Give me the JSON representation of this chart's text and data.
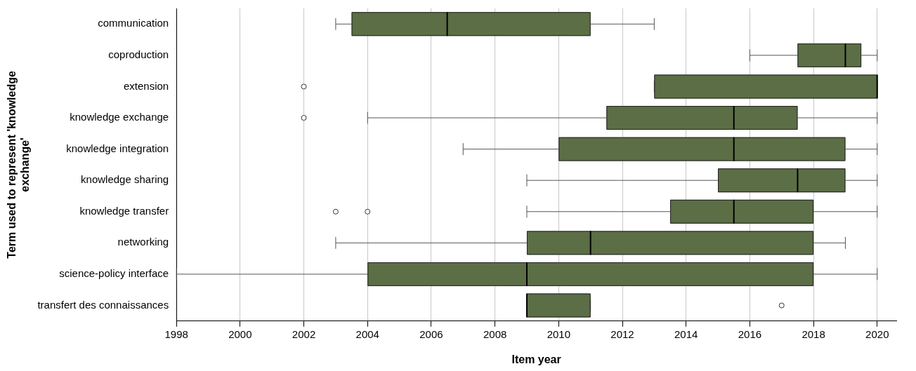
{
  "chart_data": {
    "type": "box",
    "orientation": "horizontal",
    "xlabel": "Item year",
    "ylabel": "Term used to represent 'knowledge exchange'",
    "categories": [
      "communication",
      "coproduction",
      "extension",
      "knowledge exchange",
      "knowledge integration",
      "knowledge sharing",
      "knowledge transfer",
      "networking",
      "science-policy interface",
      "transfert des connaissances"
    ],
    "color": "#5b6e45",
    "boxes": [
      {
        "low": 2003,
        "q1": 2003.5,
        "median": 2006.5,
        "q3": 2011,
        "high": 2013
      },
      {
        "low": 2016,
        "q1": 2017.5,
        "median": 2019,
        "q3": 2019.5,
        "high": 2020
      },
      {
        "low": 2013,
        "q1": 2013,
        "median": 2020,
        "q3": 2020,
        "high": 2020,
        "outliers": [
          2002
        ]
      },
      {
        "low": 2004,
        "q1": 2011.5,
        "median": 2015.5,
        "q3": 2017.5,
        "high": 2020,
        "outliers": [
          2002
        ]
      },
      {
        "low": 2007,
        "q1": 2010,
        "median": 2015.5,
        "q3": 2019,
        "high": 2020
      },
      {
        "low": 2009,
        "q1": 2015,
        "median": 2017.5,
        "q3": 2019,
        "high": 2020
      },
      {
        "low": 2009,
        "q1": 2013.5,
        "median": 2015.5,
        "q3": 2018,
        "high": 2020,
        "outliers": [
          2003,
          2004
        ]
      },
      {
        "low": 2003,
        "q1": 2009,
        "median": 2011,
        "q3": 2018,
        "high": 2019
      },
      {
        "low": 1998,
        "q1": 2004,
        "median": 2009,
        "q3": 2018,
        "high": 2020
      },
      {
        "low": 2009,
        "q1": 2009,
        "median": 2009,
        "q3": 2011,
        "high": 2011,
        "outliers": [
          2017
        ]
      }
    ],
    "xlim": [
      1998,
      2020.6
    ],
    "xticks": [
      1998,
      2000,
      2002,
      2004,
      2006,
      2008,
      2010,
      2012,
      2014,
      2016,
      2018,
      2020
    ],
    "grid": "x"
  }
}
